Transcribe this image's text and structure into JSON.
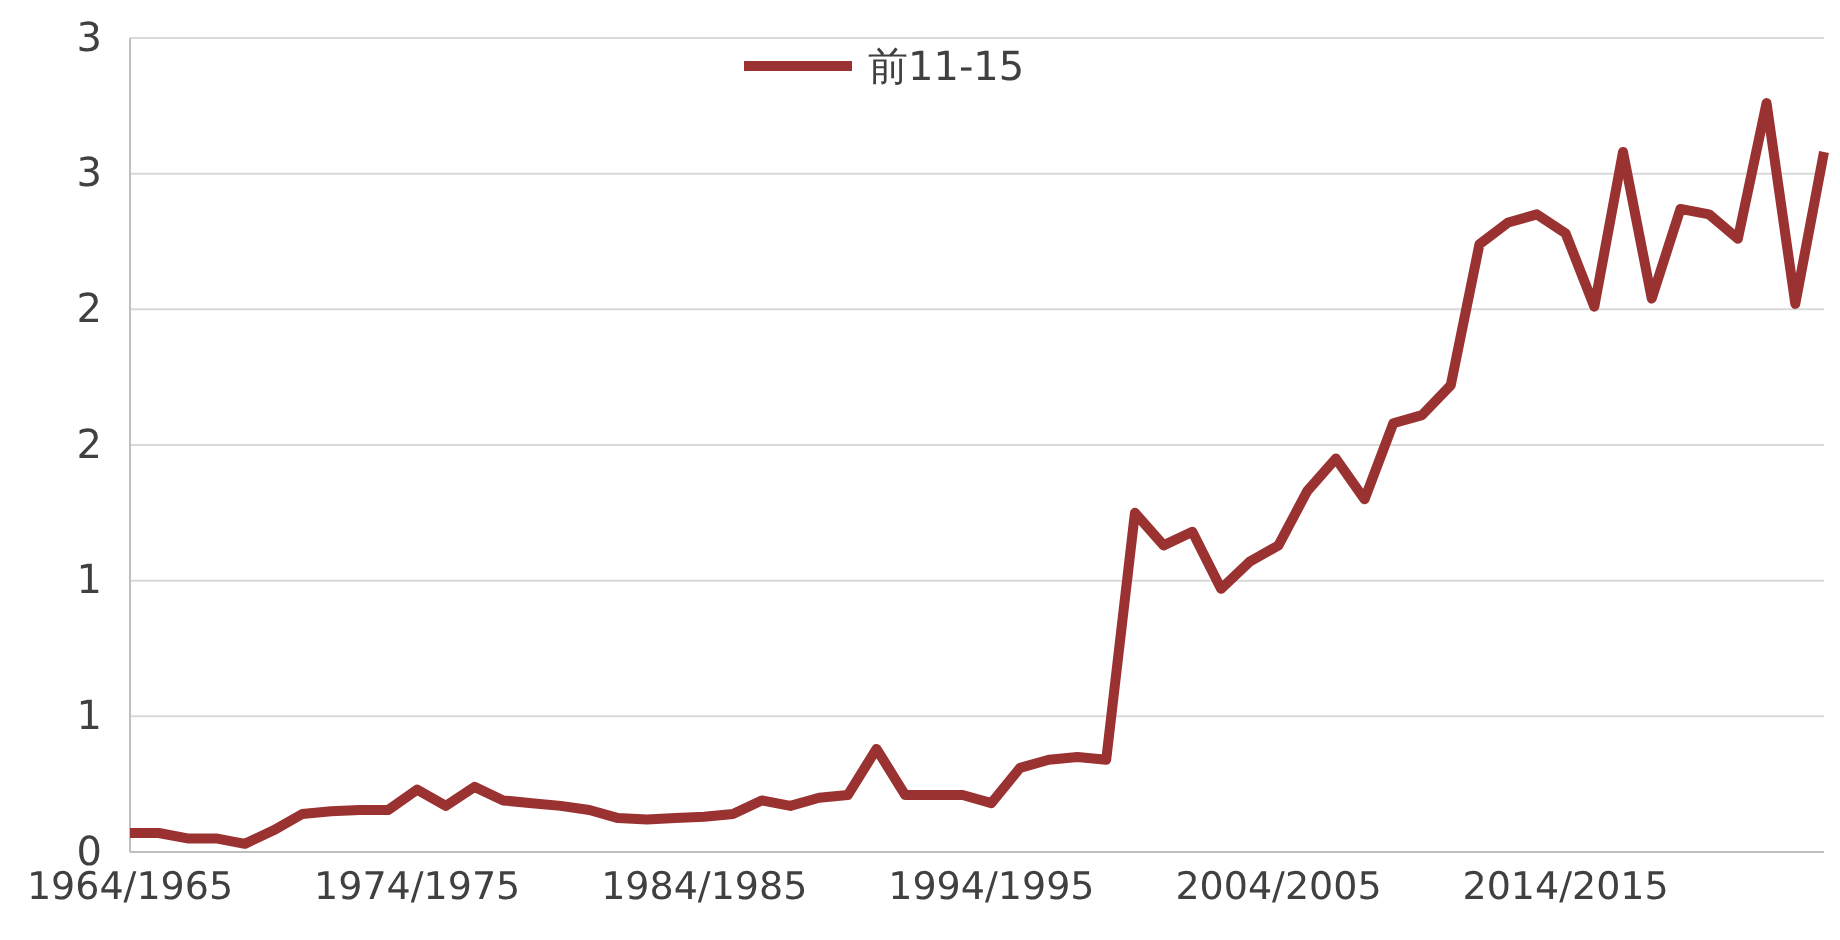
{
  "chart_data": {
    "type": "line",
    "categories": [
      "1964/1965",
      null,
      null,
      null,
      null,
      null,
      null,
      null,
      null,
      null,
      "1974/1975",
      null,
      null,
      null,
      null,
      null,
      null,
      null,
      null,
      null,
      "1984/1985",
      null,
      null,
      null,
      null,
      null,
      null,
      null,
      null,
      null,
      "1994/1995",
      null,
      null,
      null,
      null,
      null,
      null,
      null,
      null,
      null,
      "2004/2005",
      null,
      null,
      null,
      null,
      null,
      null,
      null,
      null,
      null,
      "2014/2015",
      null,
      null,
      null,
      null,
      null,
      null,
      null,
      null,
      null
    ],
    "series": [
      {
        "name": "前11-15",
        "color": "#9b3232",
        "values": [
          0.07,
          0.07,
          0.05,
          0.05,
          0.03,
          0.08,
          0.14,
          0.15,
          0.155,
          0.155,
          0.23,
          0.17,
          0.24,
          0.19,
          0.18,
          0.17,
          0.155,
          0.125,
          0.12,
          0.125,
          0.13,
          0.14,
          0.19,
          0.17,
          0.2,
          0.21,
          0.38,
          0.21,
          0.21,
          0.21,
          0.18,
          0.31,
          0.34,
          0.35,
          0.34,
          1.25,
          1.13,
          1.18,
          0.97,
          1.07,
          1.13,
          1.33,
          1.45,
          1.3,
          1.58,
          1.61,
          1.72,
          2.24,
          2.32,
          2.35,
          2.28,
          2.01,
          2.58,
          2.04,
          2.37,
          2.35,
          2.26,
          2.76,
          2.02,
          2.58
        ]
      }
    ],
    "ylim": [
      0,
      3
    ],
    "yticks": [
      0,
      {
        "value": 0.5,
        "label": "1"
      },
      1,
      {
        "value": 1.5,
        "label": "2"
      },
      2,
      {
        "value": 2.5,
        "label": "3"
      },
      3
    ],
    "grid": "y",
    "legend": "top",
    "marker": "none",
    "line_style": "solid"
  }
}
